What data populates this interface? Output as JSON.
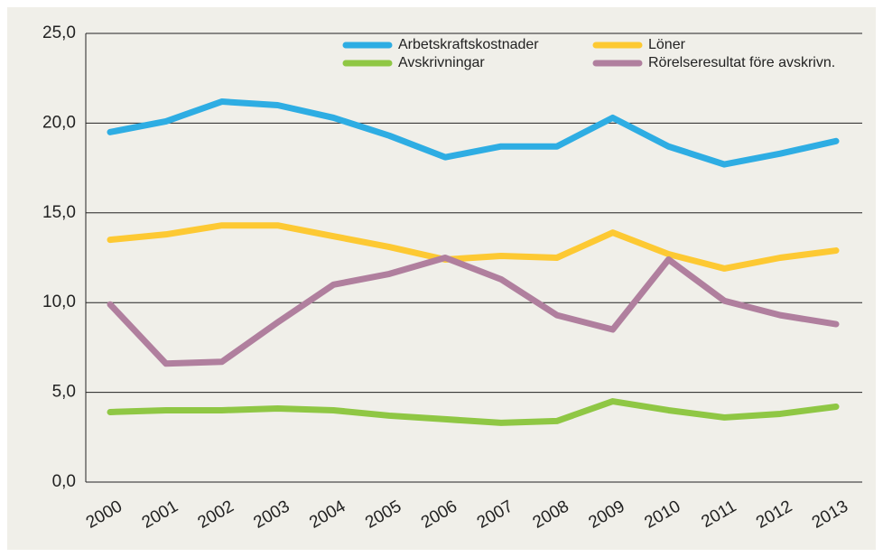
{
  "chart_data": {
    "type": "line",
    "categories": [
      "2000",
      "2001",
      "2002",
      "2003",
      "2004",
      "2005",
      "2006",
      "2007",
      "2008",
      "2009",
      "2010",
      "2011",
      "2012",
      "2013"
    ],
    "series": [
      {
        "name": "Arbetskraftskostnader",
        "color": "#2eade3",
        "values": [
          19.5,
          20.1,
          21.2,
          21.0,
          20.3,
          19.3,
          18.1,
          18.7,
          18.7,
          20.3,
          18.7,
          17.7,
          18.3,
          19.0
        ]
      },
      {
        "name": "Löner",
        "color": "#fdc933",
        "values": [
          13.5,
          13.8,
          14.3,
          14.3,
          13.7,
          13.1,
          12.4,
          12.6,
          12.5,
          13.9,
          12.7,
          11.9,
          12.5,
          12.9
        ]
      },
      {
        "name": "Avskrivningar",
        "color": "#8fc744",
        "values": [
          3.9,
          4.0,
          4.0,
          4.1,
          4.0,
          3.7,
          3.5,
          3.3,
          3.4,
          4.5,
          4.0,
          3.6,
          3.8,
          4.2
        ]
      },
      {
        "name": "Rörelseresultat före avskrivn.",
        "color": "#b07f9e",
        "values": [
          9.9,
          6.6,
          6.7,
          8.9,
          11.0,
          11.6,
          12.5,
          11.3,
          9.3,
          8.5,
          12.4,
          10.1,
          9.3,
          8.8
        ]
      }
    ],
    "ylim": [
      0,
      25
    ],
    "yticks": [
      {
        "value": 0,
        "label": "0,0"
      },
      {
        "value": 5,
        "label": "5,0"
      },
      {
        "value": 10,
        "label": "10,0"
      },
      {
        "value": 15,
        "label": "15,0"
      },
      {
        "value": 20,
        "label": "20,0"
      },
      {
        "value": 25,
        "label": "25,0"
      }
    ],
    "grid": true,
    "legend": "top"
  }
}
